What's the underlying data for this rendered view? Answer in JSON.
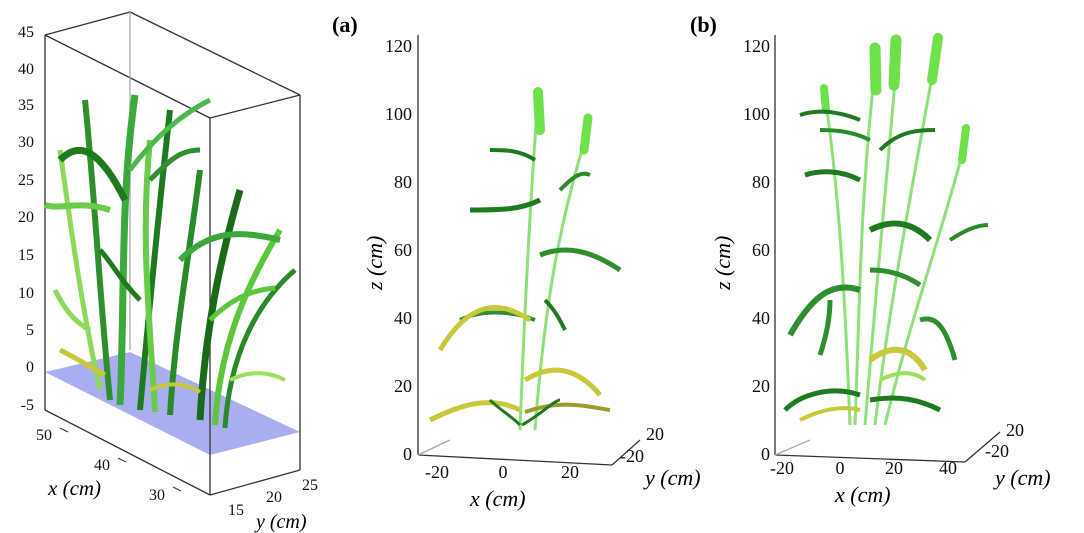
{
  "chart_data": [
    {
      "type": "3d-plant-render",
      "panel": "",
      "xlabel": "x (cm)",
      "ylabel": "y (cm)",
      "zlabel": "",
      "x_ticks": [
        "50",
        "40",
        "30"
      ],
      "y_ticks": [
        "15",
        "20",
        "25"
      ],
      "z_ticks": [
        "45",
        "40",
        "35",
        "30",
        "25",
        "20",
        "15",
        "10",
        "5",
        "0",
        "-5"
      ],
      "xlim": [
        25,
        55
      ],
      "ylim": [
        12,
        27
      ],
      "zlim": [
        -5,
        45
      ]
    },
    {
      "type": "3d-plant-render",
      "panel": "(a)",
      "xlabel": "x (cm)",
      "ylabel": "y (cm)",
      "zlabel": "z (cm)",
      "x_ticks": [
        "-20",
        "0",
        "20"
      ],
      "y_ticks": [
        "20",
        "-20"
      ],
      "z_ticks": [
        "120",
        "100",
        "80",
        "60",
        "40",
        "20",
        "0"
      ],
      "zlim": [
        0,
        120
      ]
    },
    {
      "type": "3d-plant-render",
      "panel": "(b)",
      "xlabel": "x (cm)",
      "ylabel": "y (cm)",
      "zlabel": "z (cm)",
      "x_ticks": [
        "-20",
        "0",
        "20",
        "40"
      ],
      "y_ticks": [
        "20",
        "-20"
      ],
      "z_ticks": [
        "120",
        "100",
        "80",
        "60",
        "40",
        "20",
        "0"
      ],
      "zlim": [
        0,
        120
      ]
    }
  ],
  "colors": {
    "leaf_dark": "#1f7a1f",
    "leaf_light": "#9be05a",
    "leaf_yellow": "#c8c83a",
    "ground": "#9aa0ee"
  }
}
